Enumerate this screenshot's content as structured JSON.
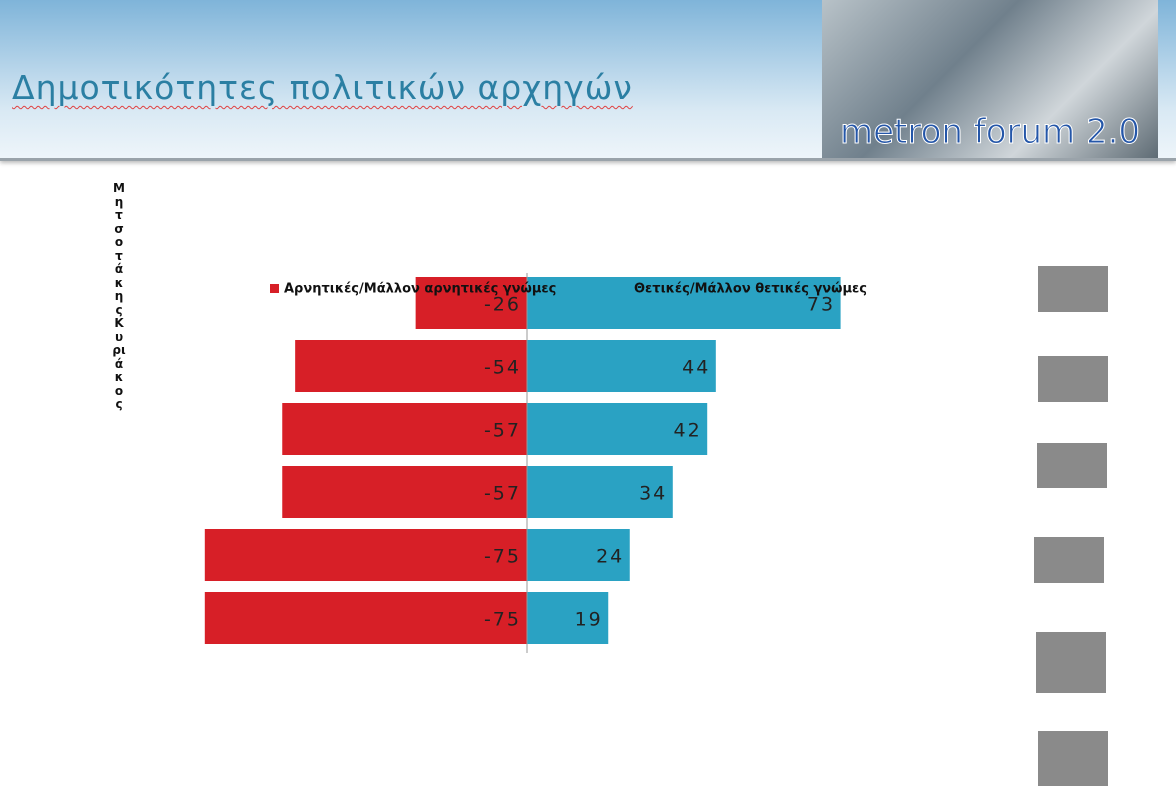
{
  "logo": "metron forum 2.0",
  "chart_data": {
    "type": "bar",
    "orientation": "horizontal",
    "title": "Δημοτικότητες πολιτικών αρχηγών",
    "categories": [
      "Μητσοτάκης Κυριάκος",
      null,
      null,
      null,
      null,
      null
    ],
    "series": [
      {
        "name": "Αρνητικές/Μάλλον αρνητικές γνώμες",
        "color": "#d71f27",
        "values": [
          -26,
          -54,
          -57,
          -57,
          -75,
          -75
        ]
      },
      {
        "name": "Θετικές/Μάλλον θετικές γνώμες",
        "color": "#2aa2c3",
        "values": [
          73,
          44,
          42,
          34,
          24,
          19
        ]
      }
    ],
    "xlim": [
      -76,
      76
    ],
    "grid": false,
    "legend": "top"
  }
}
